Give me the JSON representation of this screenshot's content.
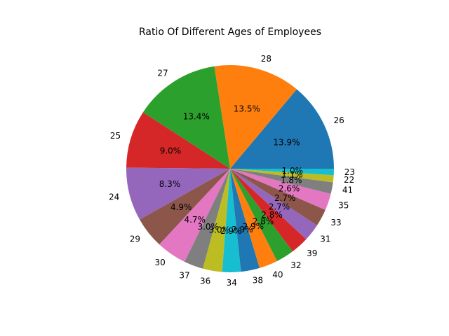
{
  "chart_data": {
    "type": "pie",
    "title": "Ratio Of Different Ages of Employees",
    "start_angle_deg": 0,
    "direction": "counterclockwise",
    "slices": [
      {
        "label": "26",
        "value": 13.9,
        "pct_text": "13.9%",
        "color": "#1f77b4"
      },
      {
        "label": "28",
        "value": 13.5,
        "pct_text": "13.5%",
        "color": "#ff7f0e"
      },
      {
        "label": "27",
        "value": 13.4,
        "pct_text": "13.4%",
        "color": "#2ca02c"
      },
      {
        "label": "25",
        "value": 9.0,
        "pct_text": "9.0%",
        "color": "#d62728"
      },
      {
        "label": "24",
        "value": 8.3,
        "pct_text": "8.3%",
        "color": "#9467bd"
      },
      {
        "label": "29",
        "value": 4.9,
        "pct_text": "4.9%",
        "color": "#8c564b"
      },
      {
        "label": "30",
        "value": 4.7,
        "pct_text": "4.7%",
        "color": "#e377c2"
      },
      {
        "label": "37",
        "value": 3.0,
        "pct_text": "3.0%",
        "color": "#7f7f7f"
      },
      {
        "label": "36",
        "value": 3.0,
        "pct_text": "3.0%",
        "color": "#bcbd22"
      },
      {
        "label": "34",
        "value": 2.9,
        "pct_text": "2.9%",
        "color": "#17becf"
      },
      {
        "label": "38",
        "value": 2.9,
        "pct_text": "2.9%",
        "color": "#1f77b4"
      },
      {
        "label": "40",
        "value": 2.9,
        "pct_text": "2.9%",
        "color": "#ff7f0e"
      },
      {
        "label": "32",
        "value": 2.8,
        "pct_text": "2.8%",
        "color": "#2ca02c"
      },
      {
        "label": "39",
        "value": 2.8,
        "pct_text": "2.8%",
        "color": "#d62728"
      },
      {
        "label": "31",
        "value": 2.7,
        "pct_text": "2.7%",
        "color": "#9467bd"
      },
      {
        "label": "33",
        "value": 2.7,
        "pct_text": "2.7%",
        "color": "#8c564b"
      },
      {
        "label": "35",
        "value": 2.6,
        "pct_text": "2.6%",
        "color": "#e377c2"
      },
      {
        "label": "41",
        "value": 1.8,
        "pct_text": "1.8%",
        "color": "#7f7f7f"
      },
      {
        "label": "22",
        "value": 1.1,
        "pct_text": "1.1%",
        "color": "#bcbd22"
      },
      {
        "label": "23",
        "value": 1.0,
        "pct_text": "1.0%",
        "color": "#17becf"
      }
    ]
  }
}
